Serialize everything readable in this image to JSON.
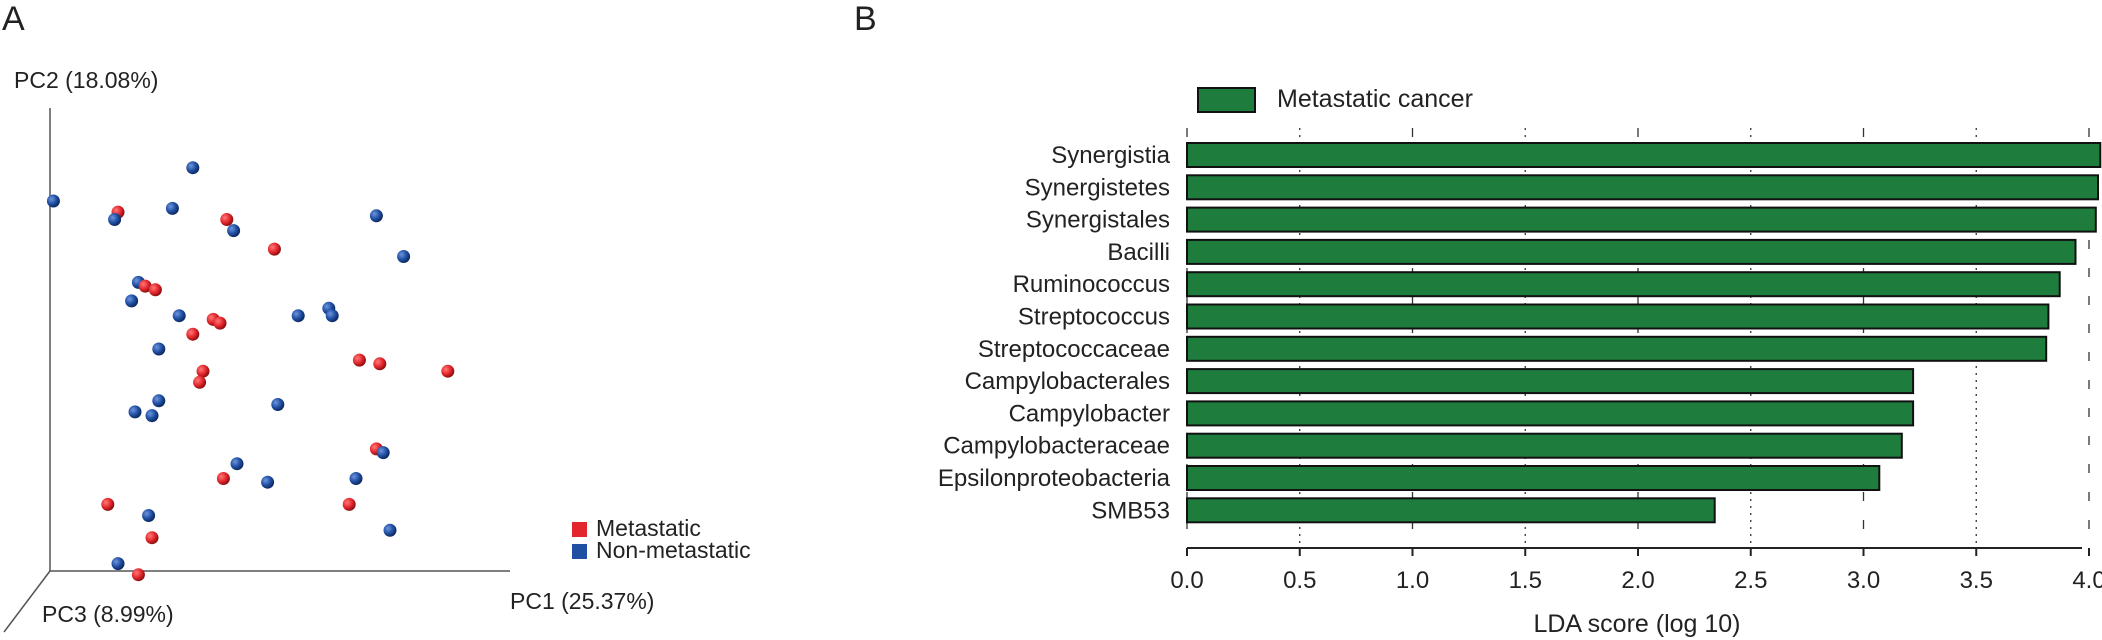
{
  "panels": {
    "a_label": "A",
    "b_label": "B"
  },
  "chart_data": [
    {
      "type": "scatter",
      "axes": {
        "pc1": "PC1 (25.37%)",
        "pc2": "PC2 (18.08%)",
        "pc3": "PC3 (8.99%)"
      },
      "legend": [
        {
          "name": "Metastatic",
          "color": "#e3262b"
        },
        {
          "name": "Non-metastatic",
          "color": "#1f4fa3"
        }
      ],
      "legend_position": "bottom-right",
      "points": [
        {
          "x": 0.05,
          "y": 5.0,
          "g": 1
        },
        {
          "x": 2.1,
          "y": 5.45,
          "g": 1
        },
        {
          "x": 1.8,
          "y": 4.9,
          "g": 1
        },
        {
          "x": 1.0,
          "y": 4.85,
          "g": 0
        },
        {
          "x": 0.95,
          "y": 4.75,
          "g": 1
        },
        {
          "x": 2.6,
          "y": 4.75,
          "g": 0
        },
        {
          "x": 2.7,
          "y": 4.6,
          "g": 1
        },
        {
          "x": 3.3,
          "y": 4.35,
          "g": 0
        },
        {
          "x": 4.8,
          "y": 4.8,
          "g": 1
        },
        {
          "x": 5.2,
          "y": 4.25,
          "g": 1
        },
        {
          "x": 1.3,
          "y": 3.9,
          "g": 1
        },
        {
          "x": 1.4,
          "y": 3.85,
          "g": 0
        },
        {
          "x": 1.55,
          "y": 3.8,
          "g": 0
        },
        {
          "x": 1.2,
          "y": 3.65,
          "g": 1
        },
        {
          "x": 1.9,
          "y": 3.45,
          "g": 1
        },
        {
          "x": 2.4,
          "y": 3.4,
          "g": 0
        },
        {
          "x": 2.5,
          "y": 3.35,
          "g": 0
        },
        {
          "x": 2.1,
          "y": 3.2,
          "g": 0
        },
        {
          "x": 4.1,
          "y": 3.55,
          "g": 1
        },
        {
          "x": 4.15,
          "y": 3.45,
          "g": 1
        },
        {
          "x": 3.65,
          "y": 3.45,
          "g": 1
        },
        {
          "x": 1.6,
          "y": 3.0,
          "g": 1
        },
        {
          "x": 2.25,
          "y": 2.7,
          "g": 0
        },
        {
          "x": 2.2,
          "y": 2.55,
          "g": 0
        },
        {
          "x": 4.55,
          "y": 2.85,
          "g": 0
        },
        {
          "x": 4.85,
          "y": 2.8,
          "g": 0
        },
        {
          "x": 5.85,
          "y": 2.7,
          "g": 0
        },
        {
          "x": 1.6,
          "y": 2.3,
          "g": 1
        },
        {
          "x": 1.25,
          "y": 2.15,
          "g": 1
        },
        {
          "x": 1.5,
          "y": 2.1,
          "g": 1
        },
        {
          "x": 3.35,
          "y": 2.25,
          "g": 1
        },
        {
          "x": 4.8,
          "y": 1.65,
          "g": 0
        },
        {
          "x": 4.9,
          "y": 1.6,
          "g": 1
        },
        {
          "x": 2.75,
          "y": 1.45,
          "g": 1
        },
        {
          "x": 2.55,
          "y": 1.25,
          "g": 0
        },
        {
          "x": 3.2,
          "y": 1.2,
          "g": 1
        },
        {
          "x": 4.5,
          "y": 1.25,
          "g": 1
        },
        {
          "x": 0.85,
          "y": 0.9,
          "g": 0
        },
        {
          "x": 4.4,
          "y": 0.9,
          "g": 0
        },
        {
          "x": 1.45,
          "y": 0.75,
          "g": 1
        },
        {
          "x": 5.0,
          "y": 0.55,
          "g": 1
        },
        {
          "x": 1.5,
          "y": 0.45,
          "g": 0
        },
        {
          "x": 1.0,
          "y": 0.1,
          "g": 1
        },
        {
          "x": 1.3,
          "y": -0.05,
          "g": 0
        }
      ]
    },
    {
      "type": "bar",
      "orientation": "horizontal",
      "legend": "Metastatic cancer",
      "color": "#1e7d3c",
      "xlabel": "LDA score (log 10)",
      "xlim": [
        0,
        4.0
      ],
      "xticks": [
        "0.0",
        "0.5",
        "1.0",
        "1.5",
        "2.0",
        "2.5",
        "3.0",
        "3.5",
        "4.0"
      ],
      "categories": [
        "Synergistia",
        "Synergistetes",
        "Synergistales",
        "Bacilli",
        "Ruminococcus",
        "Streptococcus",
        "Streptococcaceae",
        "Campylobacterales",
        "Campylobacter",
        "Campylobacteraceae",
        "Epsilonproteobacteria",
        "SMB53"
      ],
      "values": [
        4.05,
        4.04,
        4.03,
        3.94,
        3.87,
        3.82,
        3.81,
        3.22,
        3.22,
        3.17,
        3.07,
        2.34
      ]
    }
  ]
}
